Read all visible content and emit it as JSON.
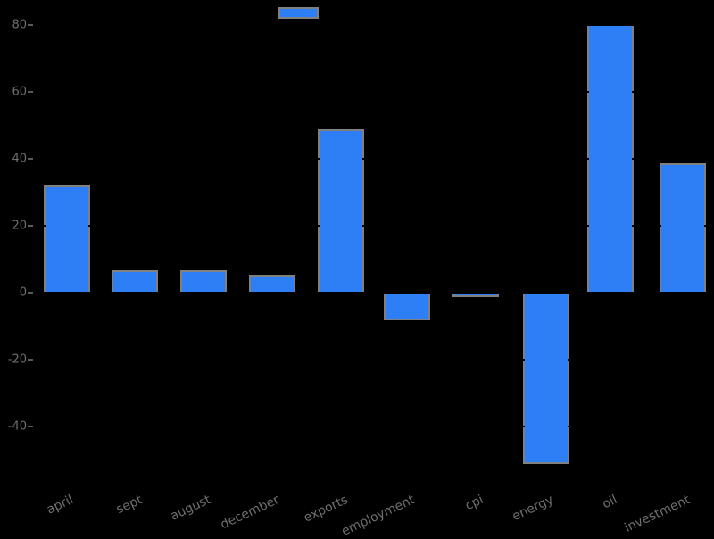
{
  "window": {
    "background_color": "#000000"
  },
  "chart_data": {
    "type": "bar",
    "categories": [
      "april",
      "sept",
      "august",
      "december",
      "exports",
      "employment",
      "cpi",
      "energy",
      "oil",
      "investment"
    ],
    "values": [
      32,
      6.5,
      6.5,
      5,
      48.5,
      -8,
      -1,
      -51,
      80,
      38.5
    ],
    "title": "",
    "xlabel": "",
    "ylabel": "",
    "yticks": [
      80,
      60,
      40,
      20,
      0,
      -20,
      -40
    ],
    "ylim": [
      -57,
      86
    ],
    "grid": true,
    "legend": {
      "position": "top-center",
      "label": ""
    },
    "colors": {
      "bar_fill": "#2e7ef6",
      "bar_edge": "#808080",
      "tick_text": "#6e6e6e",
      "tick_mark": "#5a5a5a",
      "gridline": "#000000",
      "background": "#000000"
    }
  }
}
